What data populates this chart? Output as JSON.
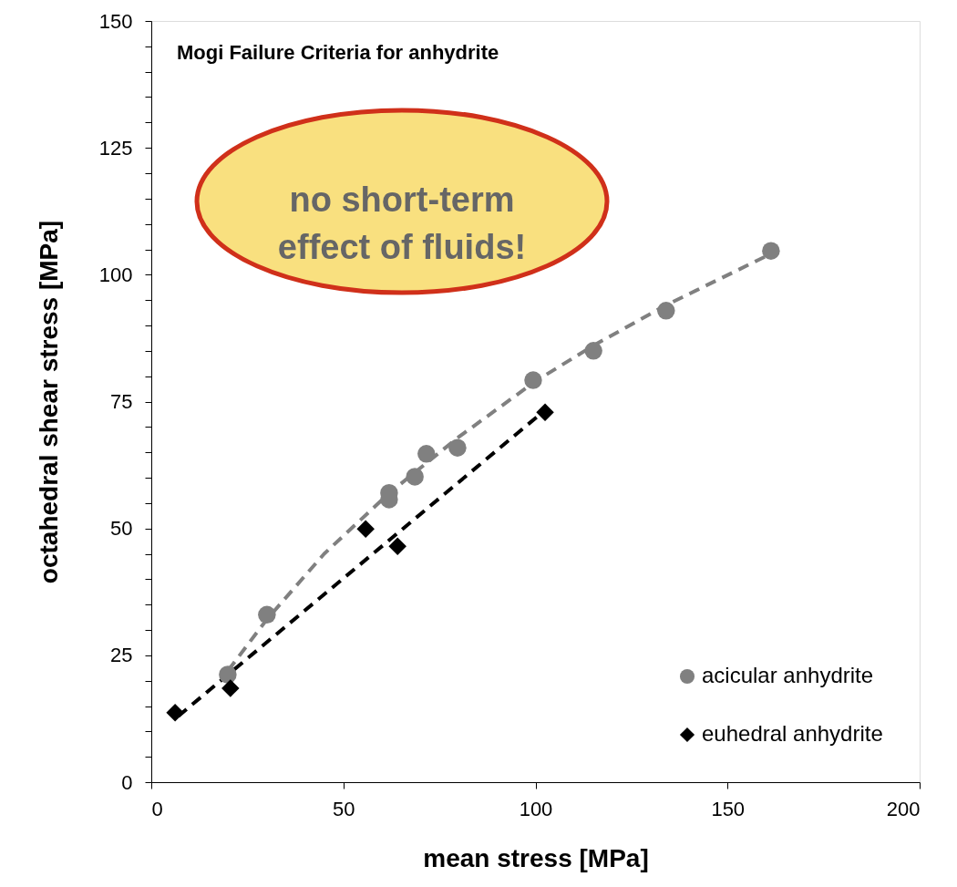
{
  "chart_data": {
    "type": "scatter",
    "title": "Mogi Failure Criteria for anhydrite",
    "xlabel": "mean stress [MPa]",
    "ylabel": "octahedral shear stress [MPa]",
    "annotations": [
      "no short-term\neffect of fluids!"
    ],
    "xlim": [
      0,
      200
    ],
    "xticks": [
      0,
      50,
      100,
      150,
      200
    ],
    "ylim": [
      0,
      150
    ],
    "yticks": [
      0,
      {
        "value": 5,
        "label": null
      },
      {
        "value": 10,
        "label": null
      },
      {
        "value": 15,
        "label": null
      },
      {
        "value": 20,
        "label": null
      },
      25,
      {
        "value": 30,
        "label": null
      },
      {
        "value": 35,
        "label": null
      },
      {
        "value": 40,
        "label": null
      },
      {
        "value": 45,
        "label": null
      },
      50,
      {
        "value": 55,
        "label": null
      },
      {
        "value": 60,
        "label": null
      },
      {
        "value": 65,
        "label": null
      },
      {
        "value": 70,
        "label": null
      },
      75,
      {
        "value": 80,
        "label": null
      },
      {
        "value": 85,
        "label": null
      },
      {
        "value": 90,
        "label": null
      },
      {
        "value": 95,
        "label": null
      },
      100,
      {
        "value": 105,
        "label": null
      },
      {
        "value": 110,
        "label": null
      },
      {
        "value": 115,
        "label": null
      },
      {
        "value": 120,
        "label": null
      },
      125,
      {
        "value": 130,
        "label": null
      },
      {
        "value": 135,
        "label": null
      },
      {
        "value": 140,
        "label": null
      },
      {
        "value": 145,
        "label": null
      },
      150
    ],
    "grid": false,
    "legend": "bottom right",
    "series": [
      {
        "type": "line",
        "color": "#808080",
        "line_style": "dashed",
        "x": [
          20,
          30,
          45,
          62,
          80,
          100,
          115,
          134,
          161
        ],
        "values": [
          22,
          32,
          45,
          57,
          68,
          79,
          86,
          94,
          104
        ]
      },
      {
        "type": "line",
        "color": "#000000",
        "line_style": "dashed",
        "x": [
          7,
          102
        ],
        "values": [
          13,
          73
        ]
      },
      {
        "name": "acicular anhydrite",
        "color": "#808080",
        "marker": "circle",
        "x": [
          19.9,
          30.1,
          61.9,
          61.9,
          68.6,
          71.6,
          79.7,
          99.4,
          115.1,
          134.0,
          161.3
        ],
        "values": [
          21.2,
          33.0,
          55.7,
          57.0,
          60.2,
          64.7,
          65.9,
          79.2,
          85.0,
          92.9,
          104.7
        ]
      },
      {
        "name": "euhedral anhydrite",
        "color": "#000000",
        "marker": "diamond",
        "x": [
          6.2,
          20.6,
          55.8,
          64.1,
          102.5
        ],
        "values": [
          13.7,
          18.5,
          49.9,
          46.5,
          72.9
        ]
      }
    ]
  }
}
